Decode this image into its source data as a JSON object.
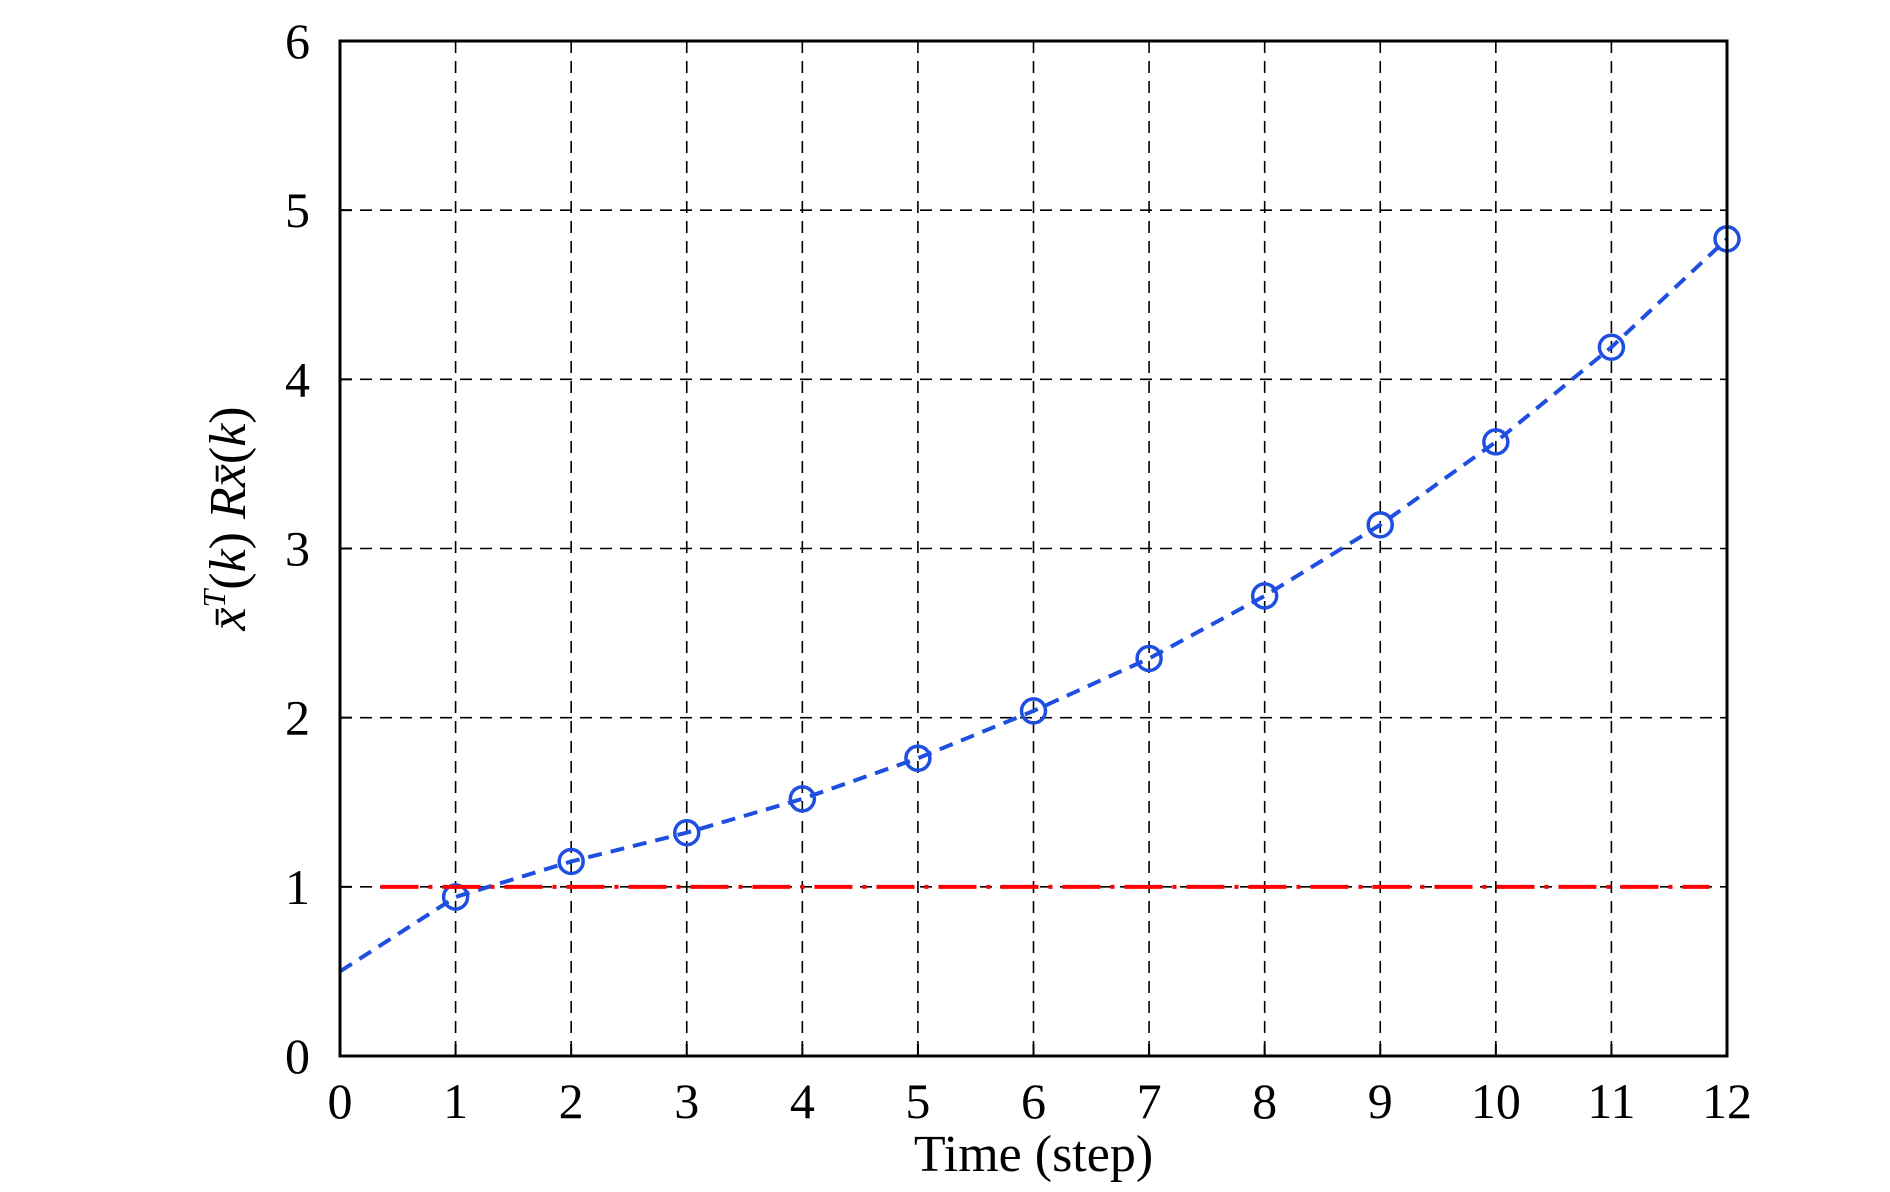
{
  "chart_data": {
    "type": "line",
    "title": "",
    "xlabel": "Time (step)",
    "ylabel": {
      "pre": "x̄",
      "sup": "T",
      "mid_italic_k": "k",
      "R": "R",
      "xbar": "x̄",
      "k": "k"
    },
    "xlim": [
      0,
      12
    ],
    "ylim": [
      0,
      6
    ],
    "xticks": [
      0,
      1,
      2,
      3,
      4,
      5,
      6,
      7,
      8,
      9,
      10,
      11,
      12
    ],
    "yticks": [
      0,
      1,
      2,
      3,
      4,
      5,
      6
    ],
    "xtick_labels": [
      "0",
      "1",
      "2",
      "3",
      "4",
      "5",
      "6",
      "7",
      "8",
      "9",
      "10",
      "11",
      "12"
    ],
    "ytick_labels": [
      "0",
      "1",
      "2",
      "3",
      "4",
      "5",
      "6"
    ],
    "grid": true,
    "grid_style": "dashed",
    "series": [
      {
        "style": "dashed line with circle markers",
        "color": "#1f4fe0",
        "x": [
          0,
          1,
          2,
          3,
          4,
          5,
          6,
          7,
          8,
          9,
          10,
          11,
          12
        ],
        "y": [
          0.5,
          0.94,
          1.15,
          1.32,
          1.52,
          1.76,
          2.04,
          2.35,
          2.72,
          3.14,
          3.63,
          4.19,
          4.83
        ],
        "markers_at": [
          1,
          2,
          3,
          4,
          5,
          6,
          7,
          8,
          9,
          10,
          11,
          12
        ]
      },
      {
        "style": "dash-dot line",
        "color": "#ff0000",
        "x": [
          0.35,
          11.85
        ],
        "y": [
          1,
          1
        ]
      }
    ]
  }
}
